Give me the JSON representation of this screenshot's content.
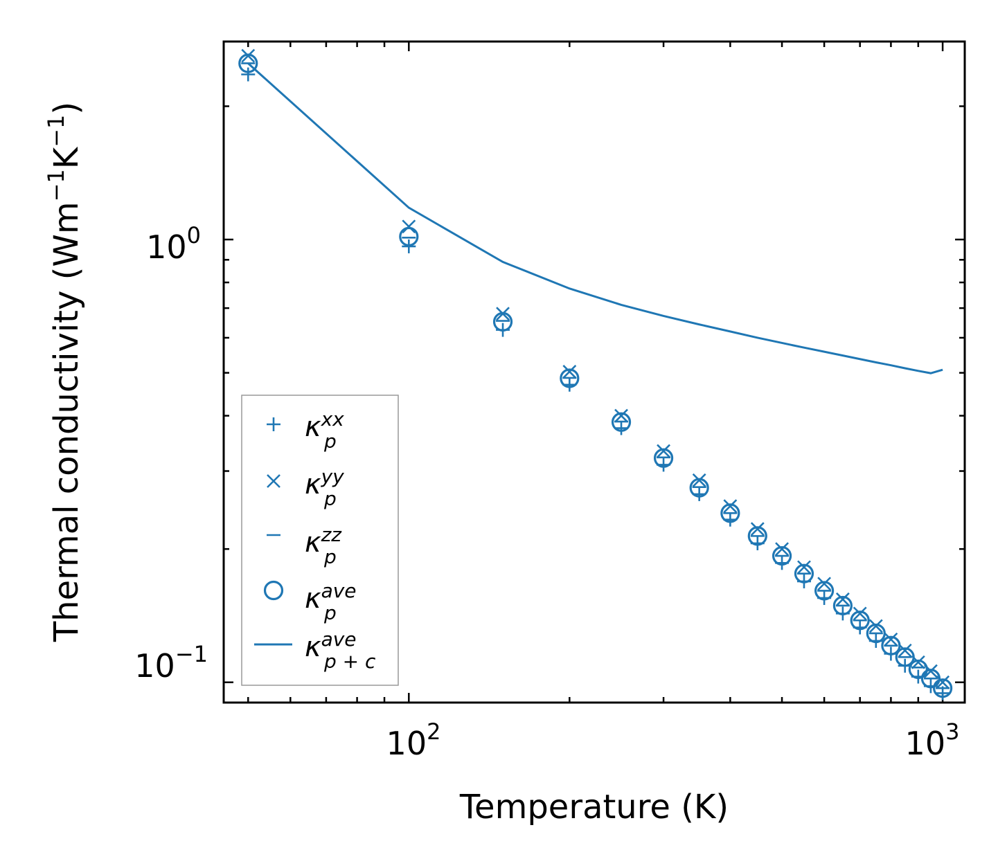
{
  "chart_data": {
    "type": "scatter",
    "xscale": "log",
    "yscale": "log",
    "xlim": [
      45,
      1100
    ],
    "ylim": [
      0.09,
      2.8
    ],
    "xlabel": "Temperature (K)",
    "ylabel": {
      "base": "Thermal conductivity (Wm",
      "exp1": "−1",
      "mid": "K",
      "exp2": "−1",
      "end": ")"
    },
    "x_ticks": [
      {
        "value": 100,
        "base": "10",
        "exp": "2"
      },
      {
        "value": 1000,
        "base": "10",
        "exp": "3"
      }
    ],
    "y_ticks": [
      {
        "value": 1.0,
        "base": "10",
        "exp": "0"
      },
      {
        "value": 0.1,
        "base": "10",
        "exp": "−1"
      }
    ],
    "color": "#1f77b4",
    "x": [
      50,
      100,
      150,
      200,
      250,
      300,
      350,
      400,
      450,
      500,
      550,
      600,
      650,
      700,
      750,
      800,
      850,
      900,
      950,
      1000
    ],
    "series": [
      {
        "name": "kappa_p_xx",
        "marker": "plus",
        "label": {
          "base": "κ",
          "sub": "p",
          "sup": "xx"
        },
        "values": [
          2.36,
          0.965,
          0.625,
          0.47,
          0.375,
          0.31,
          0.266,
          0.233,
          0.206,
          0.186,
          0.169,
          0.155,
          0.143,
          0.133,
          0.124,
          0.116,
          0.109,
          0.103,
          0.098,
          0.0945
        ]
      },
      {
        "name": "kappa_p_yy",
        "marker": "x",
        "label": {
          "base": "κ",
          "sub": "p",
          "sup": "yy"
        },
        "values": [
          2.6,
          1.07,
          0.68,
          0.503,
          0.4,
          0.333,
          0.286,
          0.25,
          0.222,
          0.2,
          0.182,
          0.167,
          0.154,
          0.143,
          0.134,
          0.125,
          0.118,
          0.111,
          0.106,
          0.1
        ]
      },
      {
        "name": "kappa_p_zz",
        "marker": "minus",
        "label": {
          "base": "κ",
          "sub": "p",
          "sup": "zz"
        },
        "values": [
          2.5,
          1.01,
          0.655,
          0.487,
          0.388,
          0.322,
          0.276,
          0.241,
          0.214,
          0.193,
          0.176,
          0.161,
          0.149,
          0.138,
          0.129,
          0.121,
          0.114,
          0.108,
          0.102,
          0.097
        ]
      },
      {
        "name": "kappa_p_ave",
        "marker": "circle",
        "label": {
          "base": "κ",
          "sub": "p",
          "sup": "ave"
        },
        "values": [
          2.5,
          1.015,
          0.652,
          0.486,
          0.387,
          0.321,
          0.275,
          0.241,
          0.214,
          0.193,
          0.176,
          0.161,
          0.149,
          0.138,
          0.129,
          0.121,
          0.114,
          0.107,
          0.102,
          0.097
        ]
      },
      {
        "name": "kappa_pc_ave",
        "marker": "line",
        "label": {
          "base": "κ",
          "sub": "p + c",
          "sup": "ave"
        },
        "values": [
          2.5,
          1.18,
          0.89,
          0.775,
          0.712,
          0.672,
          0.643,
          0.62,
          0.6,
          0.584,
          0.57,
          0.558,
          0.547,
          0.537,
          0.528,
          0.52,
          0.512,
          0.505,
          0.499,
          0.508
        ]
      }
    ],
    "legend": {
      "position": "lower-left"
    }
  }
}
